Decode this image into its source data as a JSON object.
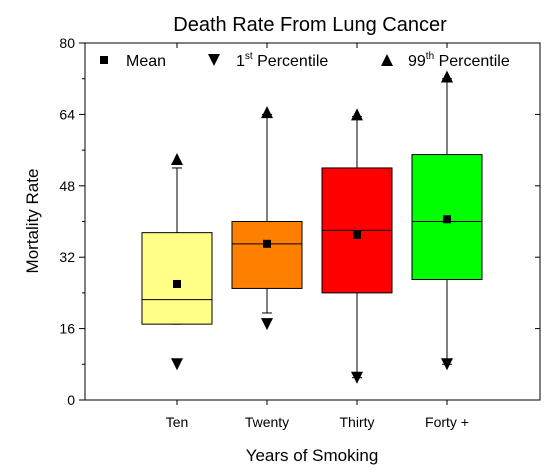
{
  "chart_data": {
    "type": "box",
    "title": "Death Rate From Lung Cancer",
    "xlabel": "Years of Smoking",
    "ylabel": "Mortality Rate",
    "ylim": [
      0,
      80
    ],
    "yticks": [
      "0",
      "16",
      "32",
      "48",
      "64",
      "80"
    ],
    "ytick_values": [
      0,
      16,
      32,
      48,
      64,
      80
    ],
    "yminor_step": 8,
    "categories": [
      "Ten",
      "Twenty",
      "Thirty",
      "Forty +"
    ],
    "colors": [
      "#ffff88",
      "#ff8000",
      "#ff0000",
      "#00ff00"
    ],
    "legend_position": "top",
    "legend": [
      {
        "marker": "square",
        "text": "Mean",
        "sup": "",
        "suffix": ""
      },
      {
        "marker": "triangle-down",
        "text": "1",
        "sup": "st",
        "suffix": " Percentile"
      },
      {
        "marker": "triangle-up",
        "text": "99",
        "sup": "th",
        "suffix": " Percentile"
      }
    ],
    "boxes": [
      {
        "category": "Ten",
        "q1": 17,
        "median": 22.5,
        "q3": 37.5,
        "mean": 26,
        "whisker_low": 17,
        "whisker_high": 52,
        "p1": 8,
        "p99": 54
      },
      {
        "category": "Twenty",
        "q1": 25,
        "median": 35,
        "q3": 40,
        "mean": 35,
        "whisker_low": 19.5,
        "whisker_high": 64,
        "p1": 17,
        "p99": 64.5
      },
      {
        "category": "Thirty",
        "q1": 24,
        "median": 38,
        "q3": 52,
        "mean": 37,
        "whisker_low": 5,
        "whisker_high": 63.5,
        "p1": 5,
        "p99": 64
      },
      {
        "category": "Forty +",
        "q1": 27,
        "median": 40,
        "q3": 55,
        "mean": 40.5,
        "whisker_low": 8,
        "whisker_high": 72,
        "p1": 8,
        "p99": 72.5
      }
    ]
  }
}
